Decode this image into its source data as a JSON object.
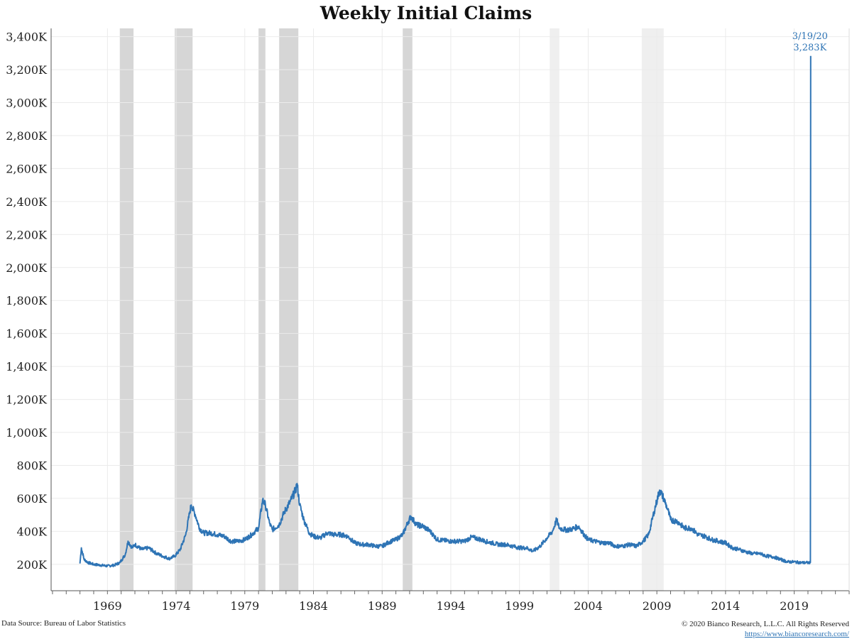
{
  "chart_data": {
    "type": "line",
    "title": "Weekly Initial Claims",
    "xlabel": "",
    "ylabel": "",
    "x_ticks": [
      "1969",
      "1974",
      "1979",
      "1984",
      "1989",
      "1994",
      "1999",
      "2004",
      "2009",
      "2014",
      "2019"
    ],
    "y_ticks": [
      "200K",
      "400K",
      "600K",
      "800K",
      "1,000K",
      "1,200K",
      "1,400K",
      "1,600K",
      "1,800K",
      "2,000K",
      "2,200K",
      "2,400K",
      "2,600K",
      "2,800K",
      "3,000K",
      "3,200K",
      "3,400K"
    ],
    "ylim": [
      40,
      3450
    ],
    "xlim": [
      1964.9,
      2023.0
    ],
    "grid": true,
    "recessions": [
      {
        "start": 1969.9,
        "end": 1970.9
      },
      {
        "start": 1973.9,
        "end": 1975.2
      },
      {
        "start": 1980.0,
        "end": 1980.5
      },
      {
        "start": 1981.5,
        "end": 1982.9
      },
      {
        "start": 1990.5,
        "end": 1991.2
      },
      {
        "start": 2001.2,
        "end": 2001.9
      },
      {
        "start": 2007.9,
        "end": 2009.5
      }
    ],
    "series": [
      {
        "color": "#2e74b5",
        "points": [
          [
            1967.0,
            205
          ],
          [
            1967.1,
            300
          ],
          [
            1967.3,
            230
          ],
          [
            1967.6,
            210
          ],
          [
            1968.0,
            200
          ],
          [
            1968.5,
            195
          ],
          [
            1969.0,
            190
          ],
          [
            1969.5,
            195
          ],
          [
            1969.9,
            210
          ],
          [
            1970.3,
            260
          ],
          [
            1970.5,
            340
          ],
          [
            1970.8,
            300
          ],
          [
            1971.0,
            320
          ],
          [
            1971.5,
            290
          ],
          [
            1972.0,
            300
          ],
          [
            1972.5,
            270
          ],
          [
            1973.0,
            250
          ],
          [
            1973.5,
            235
          ],
          [
            1973.9,
            250
          ],
          [
            1974.3,
            290
          ],
          [
            1974.7,
            380
          ],
          [
            1975.0,
            520
          ],
          [
            1975.1,
            560
          ],
          [
            1975.4,
            500
          ],
          [
            1975.7,
            420
          ],
          [
            1976.0,
            390
          ],
          [
            1976.5,
            390
          ],
          [
            1977.0,
            380
          ],
          [
            1977.5,
            370
          ],
          [
            1978.0,
            340
          ],
          [
            1978.5,
            340
          ],
          [
            1979.0,
            350
          ],
          [
            1979.5,
            380
          ],
          [
            1980.0,
            420
          ],
          [
            1980.3,
            590
          ],
          [
            1980.5,
            560
          ],
          [
            1980.8,
            450
          ],
          [
            1981.0,
            410
          ],
          [
            1981.5,
            440
          ],
          [
            1981.9,
            520
          ],
          [
            1982.3,
            580
          ],
          [
            1982.7,
            650
          ],
          [
            1982.8,
            690
          ],
          [
            1983.0,
            560
          ],
          [
            1983.3,
            470
          ],
          [
            1983.7,
            390
          ],
          [
            1984.0,
            370
          ],
          [
            1984.5,
            360
          ],
          [
            1985.0,
            390
          ],
          [
            1985.5,
            380
          ],
          [
            1986.0,
            380
          ],
          [
            1986.5,
            370
          ],
          [
            1987.0,
            330
          ],
          [
            1987.5,
            320
          ],
          [
            1988.0,
            320
          ],
          [
            1988.5,
            310
          ],
          [
            1989.0,
            310
          ],
          [
            1989.5,
            335
          ],
          [
            1990.0,
            350
          ],
          [
            1990.5,
            380
          ],
          [
            1990.9,
            460
          ],
          [
            1991.1,
            490
          ],
          [
            1991.5,
            440
          ],
          [
            1992.0,
            430
          ],
          [
            1992.5,
            400
          ],
          [
            1993.0,
            350
          ],
          [
            1993.5,
            345
          ],
          [
            1994.0,
            340
          ],
          [
            1994.5,
            340
          ],
          [
            1995.0,
            340
          ],
          [
            1995.5,
            365
          ],
          [
            1996.0,
            355
          ],
          [
            1996.5,
            340
          ],
          [
            1997.0,
            330
          ],
          [
            1997.5,
            320
          ],
          [
            1998.0,
            320
          ],
          [
            1998.5,
            310
          ],
          [
            1999.0,
            300
          ],
          [
            1999.5,
            300
          ],
          [
            2000.0,
            280
          ],
          [
            2000.5,
            310
          ],
          [
            2001.0,
            360
          ],
          [
            2001.4,
            400
          ],
          [
            2001.7,
            470
          ],
          [
            2001.9,
            420
          ],
          [
            2002.3,
            410
          ],
          [
            2002.7,
            410
          ],
          [
            2003.0,
            420
          ],
          [
            2003.3,
            430
          ],
          [
            2003.7,
            380
          ],
          [
            2004.0,
            350
          ],
          [
            2004.5,
            340
          ],
          [
            2005.0,
            330
          ],
          [
            2005.5,
            330
          ],
          [
            2006.0,
            310
          ],
          [
            2006.5,
            310
          ],
          [
            2007.0,
            320
          ],
          [
            2007.5,
            310
          ],
          [
            2008.0,
            340
          ],
          [
            2008.4,
            380
          ],
          [
            2008.8,
            520
          ],
          [
            2009.2,
            650
          ],
          [
            2009.5,
            600
          ],
          [
            2009.8,
            530
          ],
          [
            2010.0,
            470
          ],
          [
            2010.5,
            460
          ],
          [
            2011.0,
            420
          ],
          [
            2011.5,
            420
          ],
          [
            2012.0,
            380
          ],
          [
            2012.5,
            370
          ],
          [
            2013.0,
            350
          ],
          [
            2013.5,
            340
          ],
          [
            2014.0,
            330
          ],
          [
            2014.5,
            300
          ],
          [
            2015.0,
            290
          ],
          [
            2015.5,
            275
          ],
          [
            2016.0,
            265
          ],
          [
            2016.5,
            265
          ],
          [
            2017.0,
            250
          ],
          [
            2017.5,
            245
          ],
          [
            2018.0,
            230
          ],
          [
            2018.5,
            215
          ],
          [
            2019.0,
            215
          ],
          [
            2019.5,
            210
          ],
          [
            2020.0,
            210
          ],
          [
            2020.18,
            211
          ],
          [
            2020.2,
            3283
          ]
        ]
      }
    ],
    "annotation": {
      "date": "3/19/20",
      "value": "3,283K",
      "x": 2020.2,
      "y": 3283
    }
  },
  "footer": {
    "source": "Data Source: Bureau of Labor Statistics",
    "copyright": "© 2020  Bianco Research, L.L.C. All Rights Reserved",
    "url": "https://www.biancoresearch.com/"
  }
}
